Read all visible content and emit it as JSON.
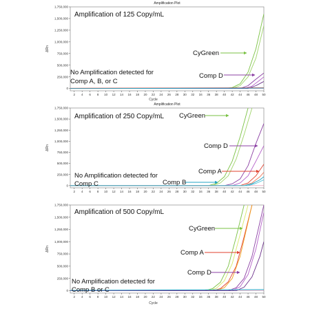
{
  "panels": [
    {
      "plot_title": "Amplification Plot",
      "heading": "Amplification of 125 Copy/mL",
      "note_lines": [
        "No Amplification detected for",
        "Comp A, B, or C"
      ],
      "ylabel": "ΔRn",
      "xlabel": "Cycle",
      "callouts": [
        {
          "label": "CyGreen",
          "color": "#7ac143"
        },
        {
          "label": "Comp D",
          "color": "#8b3fa3"
        }
      ]
    },
    {
      "plot_title": "Amplification Plot",
      "heading": "Amplification of 250 Copy/mL",
      "note_lines": [
        "No Amplification detected for",
        "Comp C"
      ],
      "ylabel": "ΔRn",
      "xlabel": "",
      "callouts": [
        {
          "label": "CyGreen",
          "color": "#7ac143"
        },
        {
          "label": "Comp D",
          "color": "#8b3fa3"
        },
        {
          "label": "Comp A",
          "color": "#e0402e"
        },
        {
          "label": "Comp B",
          "color": "#1fa3c4"
        }
      ]
    },
    {
      "plot_title": "",
      "heading": "Amplification of 500 Copy/mL",
      "note_lines": [
        "No Amplification detected for",
        "Comp B or C"
      ],
      "ylabel": "ΔRn",
      "xlabel": "Cycle",
      "callouts": [
        {
          "label": "CyGreen",
          "color": "#7ac143"
        },
        {
          "label": "Comp A",
          "color": "#e0402e"
        },
        {
          "label": "Comp D",
          "color": "#8b3fa3"
        }
      ]
    }
  ],
  "chart_data": [
    {
      "type": "line",
      "title": "Amplification Plot",
      "xlabel": "Cycle",
      "ylabel": "ΔRn",
      "xlim": [
        1,
        50
      ],
      "ylim": [
        -50000,
        1750000
      ],
      "xticks": [
        2,
        4,
        6,
        8,
        10,
        12,
        14,
        16,
        18,
        20,
        22,
        24,
        26,
        28,
        30,
        32,
        34,
        36,
        38,
        40,
        42,
        44,
        46,
        48,
        50
      ],
      "yticks": [
        0,
        250000,
        500000,
        750000,
        1000000,
        1250000,
        1500000,
        1750000
      ],
      "ytick_labels": [
        "0",
        "250,000",
        "500,000",
        "750,000",
        "1,000,000",
        "1,250,000",
        "1,500,000",
        "1,750,000"
      ],
      "grid": false,
      "series": [
        {
          "color": "#7ac143",
          "x": [
            1,
            40,
            42,
            44,
            46,
            48,
            50
          ],
          "y": [
            0,
            0,
            20000,
            100000,
            350000,
            850000,
            1600000
          ]
        },
        {
          "color": "#9fd36a",
          "x": [
            1,
            42,
            44,
            46,
            48,
            50
          ],
          "y": [
            0,
            0,
            60000,
            250000,
            650000,
            1350000
          ]
        },
        {
          "color": "#8b3fa3",
          "x": [
            1,
            44,
            46,
            48,
            50
          ],
          "y": [
            0,
            0,
            60000,
            200000,
            330000
          ]
        },
        {
          "color": "#b45fc8",
          "x": [
            1,
            45,
            47,
            49,
            50
          ],
          "y": [
            0,
            0,
            50000,
            180000,
            250000
          ]
        },
        {
          "color": "#6a2e8a",
          "x": [
            1,
            46,
            48,
            50
          ],
          "y": [
            0,
            0,
            60000,
            150000
          ]
        },
        {
          "color": "#e0402e",
          "x": [
            1,
            50
          ],
          "y": [
            5000,
            15000
          ]
        },
        {
          "color": "#1fa3c4",
          "x": [
            1,
            50
          ],
          "y": [
            -2000,
            8000
          ]
        }
      ]
    },
    {
      "type": "line",
      "title": "Amplification Plot",
      "xlabel": "",
      "ylabel": "ΔRn",
      "xlim": [
        1,
        50
      ],
      "ylim": [
        -50000,
        1750000
      ],
      "xticks": [
        2,
        4,
        6,
        8,
        10,
        12,
        14,
        16,
        18,
        20,
        22,
        24,
        26,
        28,
        30,
        32,
        34,
        36,
        38,
        40,
        42,
        44,
        46,
        48,
        50
      ],
      "yticks": [
        0,
        250000,
        500000,
        750000,
        1000000,
        1250000,
        1500000,
        1750000
      ],
      "ytick_labels": [
        "0",
        "250,000",
        "500,000",
        "750,000",
        "1,000,000",
        "1,250,000",
        "1,500,000",
        "1,750,000"
      ],
      "grid": false,
      "series": [
        {
          "color": "#7ac143",
          "x": [
            1,
            36,
            38,
            40,
            42,
            44,
            46
          ],
          "y": [
            0,
            0,
            50000,
            200000,
            550000,
            1100000,
            1750000
          ]
        },
        {
          "color": "#9fd36a",
          "x": [
            1,
            37,
            39,
            41,
            43,
            45,
            47
          ],
          "y": [
            0,
            0,
            60000,
            220000,
            600000,
            1150000,
            1750000
          ]
        },
        {
          "color": "#8b3fa3",
          "x": [
            1,
            40,
            42,
            44,
            46,
            48,
            50
          ],
          "y": [
            0,
            0,
            40000,
            150000,
            450000,
            950000,
            1400000
          ]
        },
        {
          "color": "#b45fc8",
          "x": [
            1,
            42,
            44,
            46,
            48,
            50
          ],
          "y": [
            0,
            0,
            60000,
            220000,
            550000,
            900000
          ]
        },
        {
          "color": "#e0402e",
          "x": [
            1,
            44,
            46,
            48,
            50
          ],
          "y": [
            0,
            0,
            60000,
            220000,
            480000
          ]
        },
        {
          "color": "#f07a5c",
          "x": [
            1,
            45,
            47,
            49,
            50
          ],
          "y": [
            0,
            0,
            60000,
            200000,
            300000
          ]
        },
        {
          "color": "#1fa3c4",
          "x": [
            1,
            45,
            47,
            49,
            50
          ],
          "y": [
            0,
            0,
            40000,
            130000,
            200000
          ]
        },
        {
          "color": "#4cc1d9",
          "x": [
            1,
            46,
            48,
            50
          ],
          "y": [
            0,
            0,
            50000,
            130000
          ]
        }
      ]
    },
    {
      "type": "line",
      "title": "",
      "xlabel": "Cycle",
      "ylabel": "ΔRn",
      "xlim": [
        1,
        50
      ],
      "ylim": [
        -50000,
        1750000
      ],
      "xticks": [
        2,
        4,
        6,
        8,
        10,
        12,
        14,
        16,
        18,
        20,
        22,
        24,
        26,
        28,
        30,
        32,
        34,
        36,
        38,
        40,
        42,
        44,
        46,
        48,
        50
      ],
      "yticks": [
        0,
        250000,
        500000,
        750000,
        1000000,
        1250000,
        1500000,
        1750000
      ],
      "ytick_labels": [
        "0",
        "250,000",
        "500,000",
        "750,000",
        "1,000,000",
        "1,250,000",
        "1,500,000",
        "1,750,000"
      ],
      "grid": false,
      "series": [
        {
          "color": "#7ac143",
          "x": [
            1,
            35,
            37,
            39,
            41,
            43,
            45
          ],
          "y": [
            0,
            0,
            40000,
            170000,
            500000,
            1100000,
            1750000
          ]
        },
        {
          "color": "#d8e86a",
          "x": [
            1,
            36,
            38,
            40,
            42,
            44,
            46
          ],
          "y": [
            0,
            0,
            50000,
            200000,
            550000,
            1150000,
            1750000
          ]
        },
        {
          "color": "#e0402e",
          "x": [
            1,
            37,
            39,
            41,
            43,
            45,
            47
          ],
          "y": [
            0,
            0,
            40000,
            180000,
            500000,
            1100000,
            1750000
          ]
        },
        {
          "color": "#f0a020",
          "x": [
            1,
            38,
            40,
            42,
            44,
            46,
            47
          ],
          "y": [
            0,
            0,
            60000,
            250000,
            700000,
            1400000,
            1750000
          ]
        },
        {
          "color": "#8b3fa3",
          "x": [
            1,
            41,
            43,
            45,
            47,
            49,
            50
          ],
          "y": [
            0,
            0,
            60000,
            250000,
            700000,
            1400000,
            1750000
          ]
        },
        {
          "color": "#b45fc8",
          "x": [
            1,
            42,
            44,
            46,
            48,
            50
          ],
          "y": [
            0,
            0,
            80000,
            330000,
            850000,
            1600000
          ]
        },
        {
          "color": "#6a2e8a",
          "x": [
            1,
            43,
            45,
            47,
            49,
            50
          ],
          "y": [
            0,
            0,
            70000,
            280000,
            700000,
            1000000
          ]
        },
        {
          "color": "#1fa3c4",
          "x": [
            1,
            50
          ],
          "y": [
            5000,
            20000
          ]
        }
      ]
    }
  ]
}
